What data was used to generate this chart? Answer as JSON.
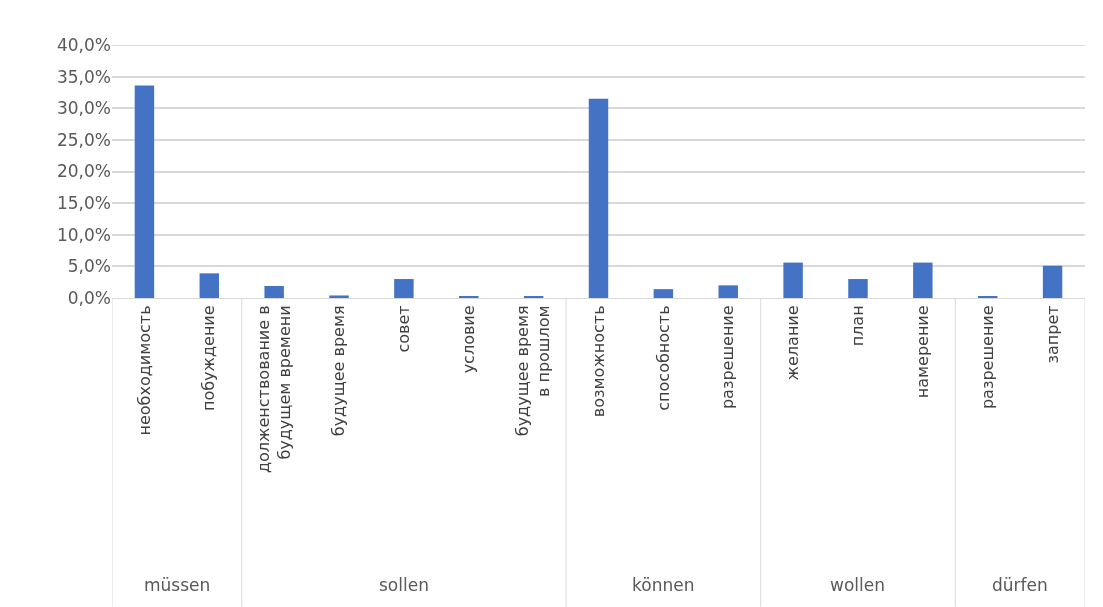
{
  "chart_data": {
    "type": "bar",
    "categories": [
      "необходимость",
      "побуждение",
      "долженствование в будущем времени",
      "будущее время",
      "совет",
      "условие",
      "будущее время в прошлом",
      "возможность",
      "способность",
      "разрешение",
      "желание",
      "план",
      "намерение",
      "разрешение",
      "запрет"
    ],
    "values": [
      33.6,
      3.9,
      1.9,
      0.4,
      3.0,
      0.3,
      0.3,
      31.5,
      1.4,
      2.0,
      5.6,
      3.0,
      5.6,
      0.3,
      5.1
    ],
    "color": "#4472c4",
    "ylim": [
      0,
      40
    ],
    "yticks": [
      {
        "value": 0,
        "label": "0,0%"
      },
      {
        "value": 5,
        "label": "5,0%"
      },
      {
        "value": 10,
        "label": "10,0%"
      },
      {
        "value": 15,
        "label": "15,0%"
      },
      {
        "value": 20,
        "label": "20,0%"
      },
      {
        "value": 25,
        "label": "25,0%"
      },
      {
        "value": 30,
        "label": "30,0%"
      },
      {
        "value": 35,
        "label": "35,0%"
      },
      {
        "value": 40,
        "label": "40,0%"
      }
    ],
    "grid": "y",
    "annotations": [
      "müssen",
      "sollen",
      "können",
      "wollen",
      "dürfen"
    ]
  }
}
